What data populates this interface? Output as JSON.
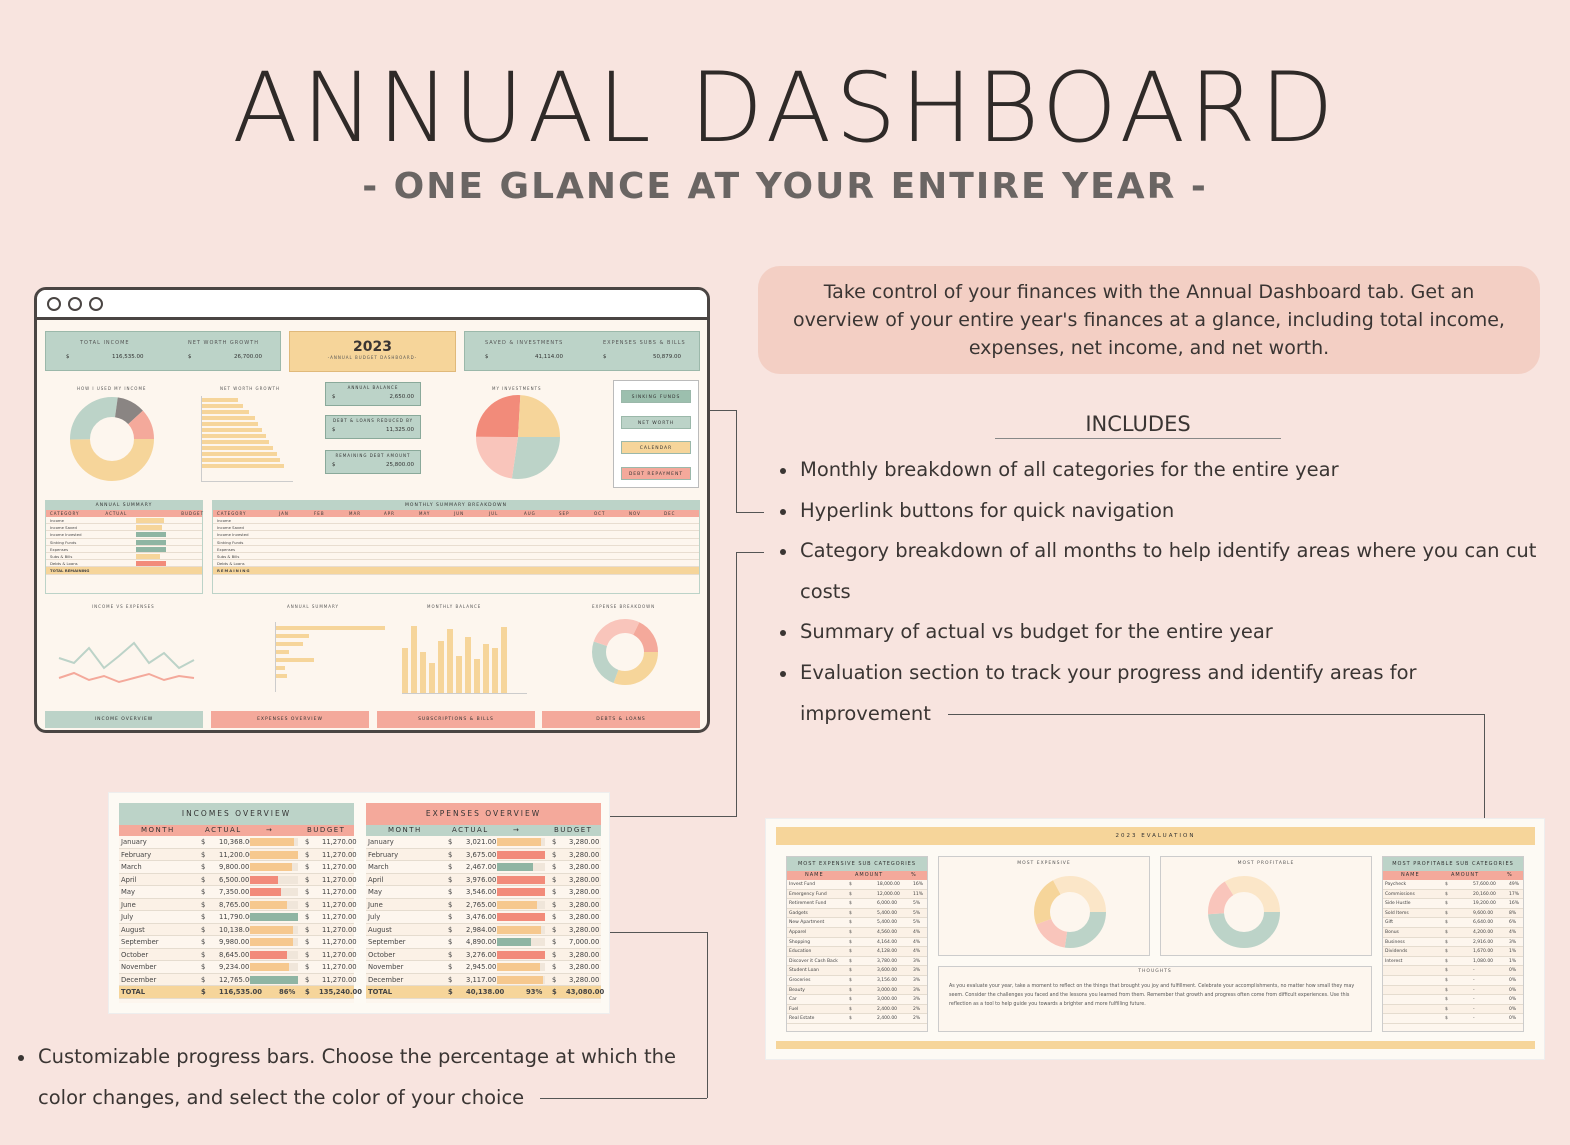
{
  "header": {
    "title": "ANNUAL DASHBOARD",
    "subtitle": "- ONE GLANCE AT YOUR ENTIRE YEAR -"
  },
  "description": "Take control of your finances with the Annual Dashboard tab. Get an overview of your entire year's finances at a glance, including total income, expenses, net income, and net worth.",
  "includes_title": "INCLUDES",
  "features": [
    "Monthly breakdown of all categories for the entire year",
    "Hyperlink buttons for quick navigation",
    "Category breakdown of all months to help identify areas where you can cut costs",
    "Summary of actual vs budget for the entire year",
    "Evaluation section to track your progress and identify areas for improvement"
  ],
  "bottom_feature": "Customizable progress bars. Choose the percentage at which the color changes, and select the color of your choice",
  "dashboard": {
    "kpis": [
      {
        "label": "TOTAL INCOME",
        "currency": "$",
        "value": "116,535.00"
      },
      {
        "label": "NET WORTH GROWTH",
        "currency": "$",
        "value": "26,700.00"
      },
      {
        "label": "SAVED & INVESTMENTS",
        "currency": "$",
        "value": "41,114.00"
      },
      {
        "label": "EXPENSES SUBS & BILLS",
        "currency": "$",
        "value": "50,879.00"
      }
    ],
    "year": "2023",
    "year_caption": "-ANNUAL BUDGET DASHBOARD-",
    "mini_cards": [
      {
        "label": "ANNUAL BALANCE",
        "currency": "$",
        "value": "2,650.00"
      },
      {
        "label": "DEBT & LOANS REDUCED BY",
        "currency": "$",
        "value": "11,325.00"
      },
      {
        "label": "REMAINING DEBT AMOUNT",
        "currency": "$",
        "value": "25,800.00"
      }
    ],
    "chart_titles": [
      "HOW I USED MY INCOME",
      "NET WORTH GROWTH",
      "MY INVESTMENTS"
    ],
    "nav_buttons": [
      "SINKING FUNDS",
      "NET WORTH",
      "CALENDAR",
      "DEBT REPAYMENT"
    ],
    "nav_colors": [
      "#9cbfae",
      "#bcd3c8",
      "#f6d59a",
      "#f4a99b"
    ],
    "annual_summary": {
      "title": "ANNUAL SUMMARY",
      "columns": [
        "CATEGORY",
        "ACTUAL",
        "BUDGET"
      ],
      "rows": [
        "Income",
        "Income Saved",
        "Income Invested",
        "Sinking Funds",
        "Expenses",
        "Subs & Bills",
        "Debts & Loans"
      ],
      "total_label": "TOTAL REMAINING"
    },
    "monthly_summary": {
      "title": "MONTHLY SUMMARY BREAKDOWN",
      "months": [
        "JAN",
        "FEB",
        "MAR",
        "APR",
        "MAY",
        "JUN",
        "JUL",
        "AUG",
        "SEP",
        "OCT",
        "NOV",
        "DEC"
      ],
      "remaining_label": "REMAINING"
    },
    "lower_titles": [
      "INCOME VS EXPENSES",
      "ANNUAL SUMMARY",
      "MONTHLY BALANCE",
      "EXPENSE BREAKDOWN"
    ],
    "bottom_tabs": [
      "INCOME OVERVIEW",
      "EXPENSES OVERVIEW",
      "SUBSCRIPTIONS & BILLS",
      "DEBTS & LOANS"
    ],
    "bottom_tab_colors": [
      "#bcd3c8",
      "#f4a99b",
      "#f4a99b",
      "#f4a99b"
    ]
  },
  "incomes_overview": {
    "title": "INCOMES OVERVIEW",
    "columns": [
      "MONTH",
      "ACTUAL",
      "→",
      "BUDGET"
    ],
    "rows": [
      {
        "month": "January",
        "actual": "10,368.00",
        "budget": "11,270.00",
        "pct": 0.92,
        "color": "#f6c88e"
      },
      {
        "month": "February",
        "actual": "11,200.00",
        "budget": "11,270.00",
        "pct": 0.99,
        "color": "#f6c88e"
      },
      {
        "month": "March",
        "actual": "9,800.00",
        "budget": "11,270.00",
        "pct": 0.87,
        "color": "#f6c88e"
      },
      {
        "month": "April",
        "actual": "6,500.00",
        "budget": "11,270.00",
        "pct": 0.58,
        "color": "#f28b7a"
      },
      {
        "month": "May",
        "actual": "7,350.00",
        "budget": "11,270.00",
        "pct": 0.65,
        "color": "#f28b7a"
      },
      {
        "month": "June",
        "actual": "8,765.00",
        "budget": "11,270.00",
        "pct": 0.78,
        "color": "#f6c88e"
      },
      {
        "month": "July",
        "actual": "11,790.00",
        "budget": "11,270.00",
        "pct": 1.0,
        "color": "#8fb5a3"
      },
      {
        "month": "August",
        "actual": "10,138.00",
        "budget": "11,270.00",
        "pct": 0.9,
        "color": "#f6c88e"
      },
      {
        "month": "September",
        "actual": "9,980.00",
        "budget": "11,270.00",
        "pct": 0.89,
        "color": "#f6c88e"
      },
      {
        "month": "October",
        "actual": "8,645.00",
        "budget": "11,270.00",
        "pct": 0.77,
        "color": "#f28b7a"
      },
      {
        "month": "November",
        "actual": "9,234.00",
        "budget": "11,270.00",
        "pct": 0.82,
        "color": "#f6c88e"
      },
      {
        "month": "December",
        "actual": "12,765.00",
        "budget": "11,270.00",
        "pct": 1.0,
        "color": "#8fb5a3"
      }
    ],
    "total": {
      "label": "TOTAL",
      "actual": "116,535.00",
      "pct": "86%",
      "budget": "135,240.00"
    }
  },
  "expenses_overview": {
    "title": "EXPENSES OVERVIEW",
    "columns": [
      "MONTH",
      "ACTUAL",
      "→",
      "BUDGET"
    ],
    "rows": [
      {
        "month": "January",
        "actual": "3,021.00",
        "budget": "3,280.00",
        "pct": 0.92,
        "color": "#f6c88e"
      },
      {
        "month": "February",
        "actual": "3,675.00",
        "budget": "3,280.00",
        "pct": 1.0,
        "color": "#f28b7a"
      },
      {
        "month": "March",
        "actual": "2,467.00",
        "budget": "3,280.00",
        "pct": 0.75,
        "color": "#8fb5a3"
      },
      {
        "month": "April",
        "actual": "3,976.00",
        "budget": "3,280.00",
        "pct": 1.0,
        "color": "#f28b7a"
      },
      {
        "month": "May",
        "actual": "3,546.00",
        "budget": "3,280.00",
        "pct": 1.0,
        "color": "#f28b7a"
      },
      {
        "month": "June",
        "actual": "2,765.00",
        "budget": "3,280.00",
        "pct": 0.84,
        "color": "#f6c88e"
      },
      {
        "month": "July",
        "actual": "3,476.00",
        "budget": "3,280.00",
        "pct": 1.0,
        "color": "#f28b7a"
      },
      {
        "month": "August",
        "actual": "2,984.00",
        "budget": "3,280.00",
        "pct": 0.91,
        "color": "#f6c88e"
      },
      {
        "month": "September",
        "actual": "4,890.00",
        "budget": "7,000.00",
        "pct": 0.7,
        "color": "#8fb5a3"
      },
      {
        "month": "October",
        "actual": "3,276.00",
        "budget": "3,280.00",
        "pct": 1.0,
        "color": "#f28b7a"
      },
      {
        "month": "November",
        "actual": "2,945.00",
        "budget": "3,280.00",
        "pct": 0.9,
        "color": "#f6c88e"
      },
      {
        "month": "December",
        "actual": "3,117.00",
        "budget": "3,280.00",
        "pct": 0.95,
        "color": "#f6c88e"
      }
    ],
    "total": {
      "label": "TOTAL",
      "actual": "40,138.00",
      "pct": "93%",
      "budget": "43,080.00"
    }
  },
  "evaluation": {
    "title": "2023 EVALUATION",
    "most_expensive_title": "MOST EXPENSIVE SUB CATEGORIES",
    "most_profitable_title": "MOST PROFITABLE SUB CATEGORIES",
    "columns": [
      "NAME",
      "AMOUNT",
      "%"
    ],
    "chart1_title": "MOST EXPENSIVE",
    "chart2_title": "MOST PROFITABLE",
    "thoughts_title": "THOUGHTS",
    "thoughts_text": "As you evaluate your year, take a moment to reflect on the things that brought you joy and fulfillment. Celebrate your accomplishments, no matter how small they may seem. Consider the challenges you faced and the lessons you learned from them. Remember that growth and progress often come from difficult experiences. Use this reflection as a tool to help guide you towards a brighter and more fulfilling future.",
    "expensive_rows": [
      {
        "name": "Invest Fund",
        "amount": "18,000.00",
        "pct": "16%"
      },
      {
        "name": "Emergency Fund",
        "amount": "12,000.00",
        "pct": "11%"
      },
      {
        "name": "Retirement Fund",
        "amount": "6,000.00",
        "pct": "5%"
      },
      {
        "name": "Gadgets",
        "amount": "5,400.00",
        "pct": "5%"
      },
      {
        "name": "New Apartment",
        "amount": "5,400.00",
        "pct": "5%"
      },
      {
        "name": "Apparel",
        "amount": "4,560.00",
        "pct": "4%"
      },
      {
        "name": "Shopping",
        "amount": "4,164.00",
        "pct": "4%"
      },
      {
        "name": "Education",
        "amount": "4,128.00",
        "pct": "4%"
      },
      {
        "name": "Discover it Cash Back",
        "amount": "3,780.00",
        "pct": "3%"
      },
      {
        "name": "Student Loan",
        "amount": "3,600.00",
        "pct": "3%"
      },
      {
        "name": "Groceries",
        "amount": "3,156.00",
        "pct": "3%"
      },
      {
        "name": "Beauty",
        "amount": "3,000.00",
        "pct": "3%"
      },
      {
        "name": "Car",
        "amount": "3,000.00",
        "pct": "3%"
      },
      {
        "name": "Fuel",
        "amount": "2,400.00",
        "pct": "2%"
      },
      {
        "name": "Real Estate",
        "amount": "2,400.00",
        "pct": "2%"
      }
    ],
    "profitable_rows": [
      {
        "name": "Paycheck",
        "amount": "57,600.00",
        "pct": "49%"
      },
      {
        "name": "Commissions",
        "amount": "20,160.00",
        "pct": "17%"
      },
      {
        "name": "Side Hustle",
        "amount": "19,200.00",
        "pct": "16%"
      },
      {
        "name": "Sold Items",
        "amount": "9,600.00",
        "pct": "8%"
      },
      {
        "name": "Gift",
        "amount": "6,640.00",
        "pct": "6%"
      },
      {
        "name": "Bonus",
        "amount": "4,200.00",
        "pct": "4%"
      },
      {
        "name": "Business",
        "amount": "2,916.00",
        "pct": "3%"
      },
      {
        "name": "Dividends",
        "amount": "1,670.00",
        "pct": "1%"
      },
      {
        "name": "Interest",
        "amount": "1,080.00",
        "pct": "1%"
      }
    ]
  }
}
